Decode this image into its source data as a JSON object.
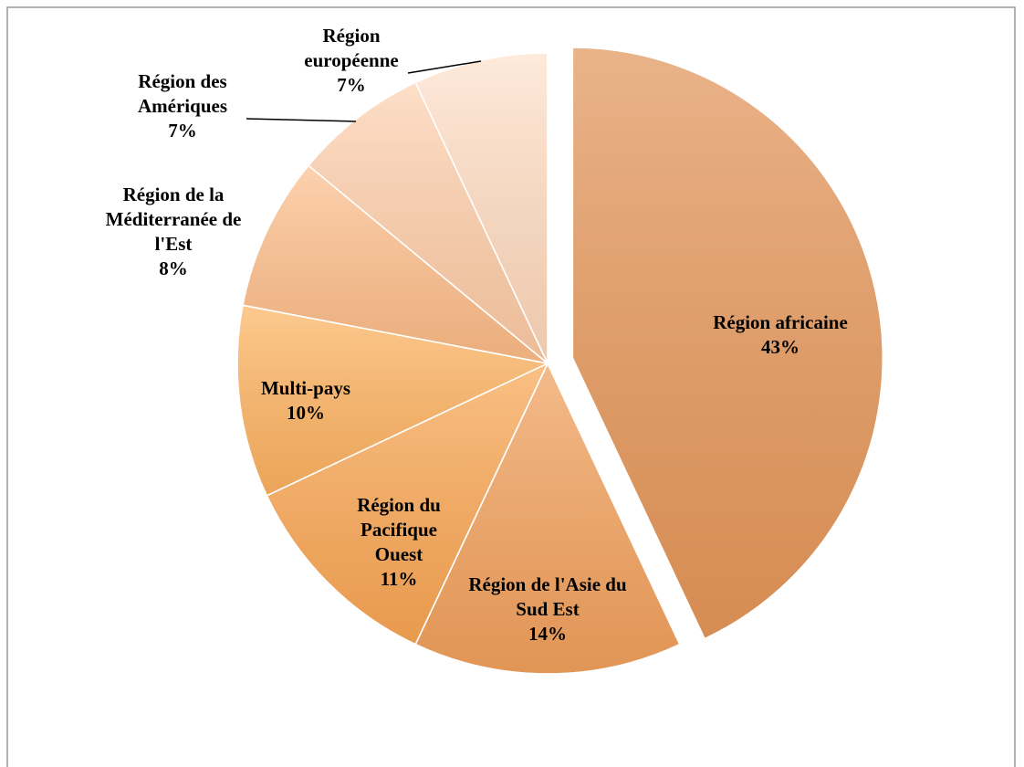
{
  "chart_data": {
    "type": "pie",
    "categories": [
      "Région africaine",
      "Région de l'Asie du Sud Est",
      "Région du Pacifique Ouest",
      "Multi-pays",
      "Région de la Méditerranée de l'Est",
      "Région des Amériques",
      "Région européenne"
    ],
    "values": [
      43,
      14,
      11,
      10,
      8,
      7,
      7
    ],
    "value_labels": [
      "43%",
      "14%",
      "11%",
      "10%",
      "8%",
      "7%",
      "7%"
    ],
    "colors": [
      "#e29a62",
      "#f0a565",
      "#f8ab5c",
      "#fcb86a",
      "#fcc395",
      "#fdd4b6",
      "#fee3cf"
    ]
  }
}
